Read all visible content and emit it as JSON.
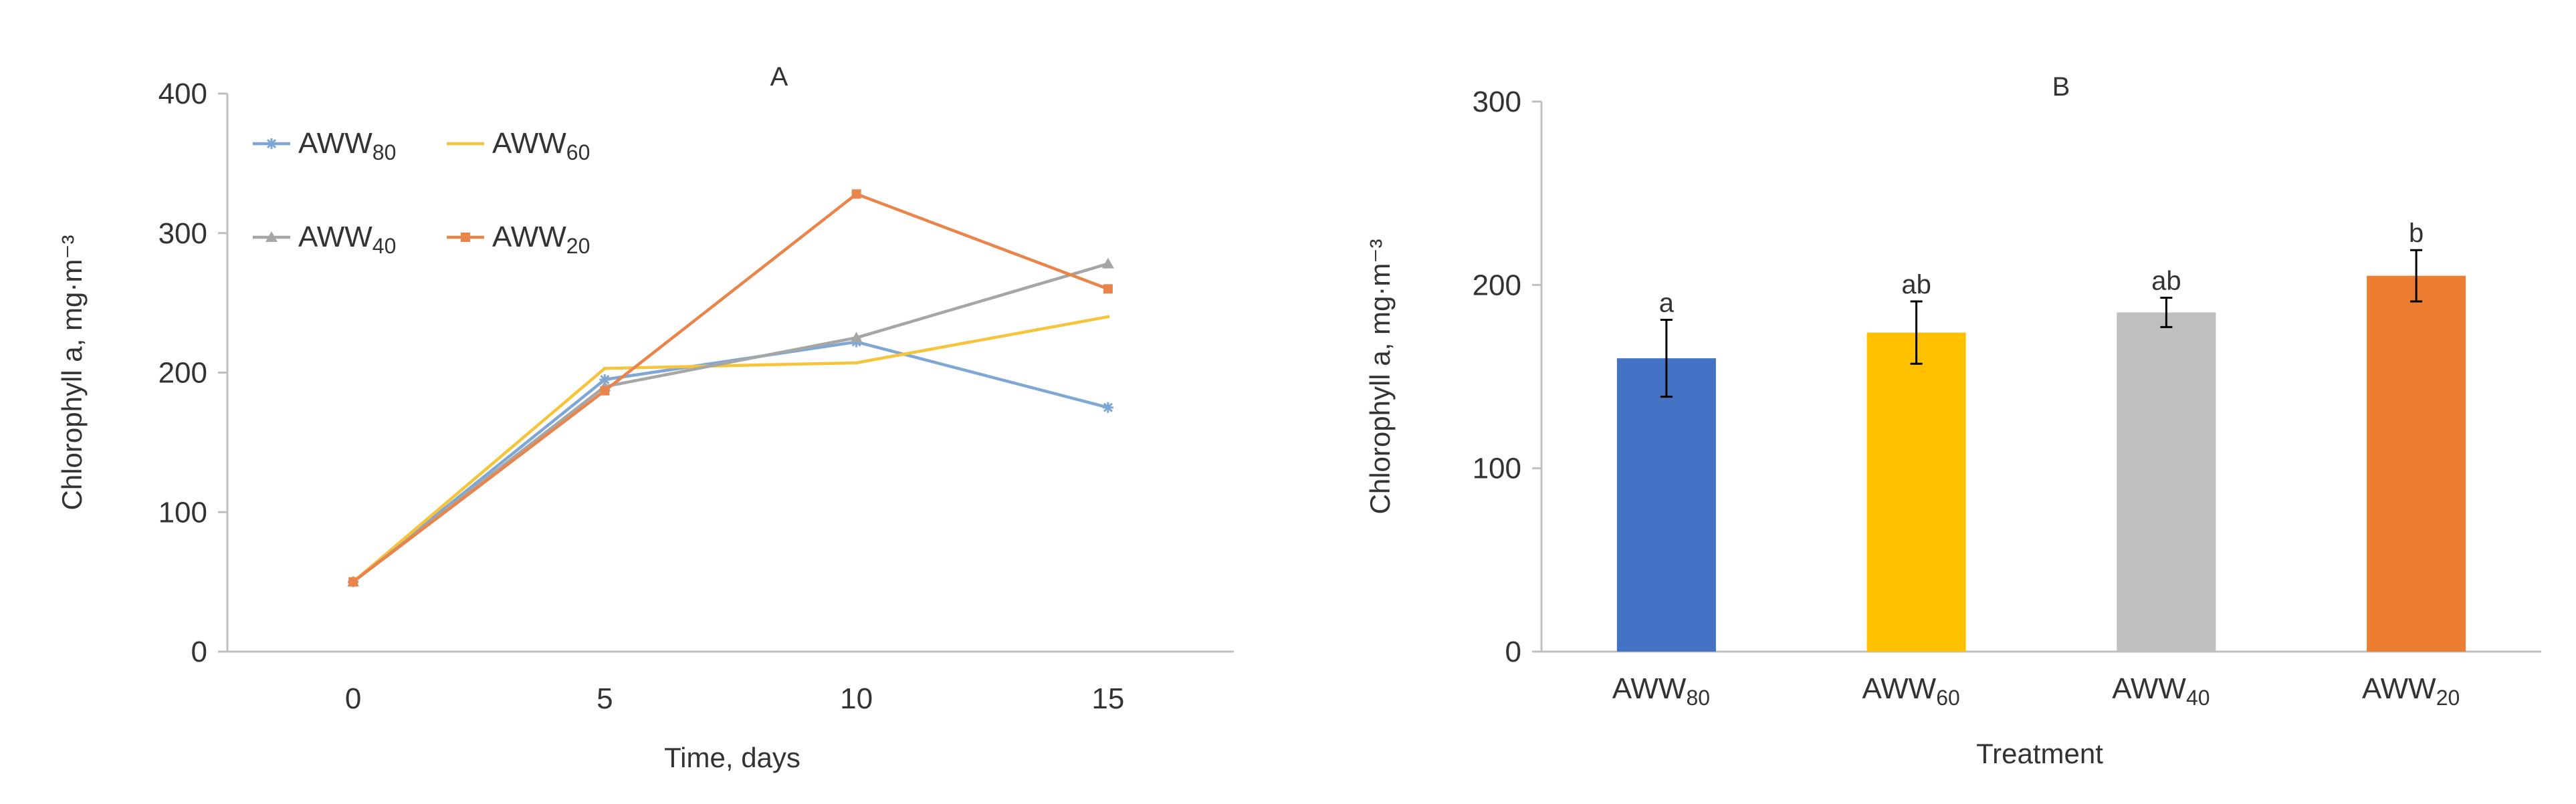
{
  "chart_data": [
    {
      "panel": "A",
      "type": "line",
      "title": "A",
      "xlabel": "Time, days",
      "ylabel": "Chlorophyll a, mg·m⁻³",
      "x": [
        0,
        5,
        10,
        15
      ],
      "xlim": [
        -2.5,
        17.5
      ],
      "ylim": [
        0,
        400
      ],
      "xticks": [
        "0",
        "5",
        "10",
        "15"
      ],
      "yticks": [
        "0",
        "100",
        "200",
        "300",
        "400"
      ],
      "grid": false,
      "legend_position": "top-left",
      "series": [
        {
          "name": "AWW",
          "sub": "80",
          "color": "#7FA7D6",
          "marker": "star",
          "values": [
            50,
            195,
            222,
            175
          ]
        },
        {
          "name": "AWW",
          "sub": "60",
          "color": "#F6C43A",
          "marker": "none",
          "values": [
            50,
            203,
            207,
            240
          ]
        },
        {
          "name": "AWW",
          "sub": "40",
          "color": "#A6A6A6",
          "marker": "triangle",
          "values": [
            50,
            190,
            225,
            278
          ]
        },
        {
          "name": "AWW",
          "sub": "20",
          "color": "#E9844A",
          "marker": "square",
          "values": [
            50,
            187,
            328,
            260
          ]
        }
      ]
    },
    {
      "panel": "B",
      "type": "bar",
      "title": "B",
      "xlabel": "Treatment",
      "ylabel": "Chlorophyll a, mg·m⁻³",
      "ylim": [
        0,
        300
      ],
      "yticks": [
        "0",
        "100",
        "200",
        "300"
      ],
      "grid": false,
      "categories": [
        {
          "name": "AWW",
          "sub": "80"
        },
        {
          "name": "AWW",
          "sub": "60"
        },
        {
          "name": "AWW",
          "sub": "40"
        },
        {
          "name": "AWW",
          "sub": "20"
        }
      ],
      "values": [
        160,
        174,
        185,
        205
      ],
      "errors": [
        21,
        17,
        8,
        14
      ],
      "colors": [
        "#4472C4",
        "#FFC000",
        "#BFBFBF",
        "#ED7D31"
      ],
      "letters": [
        "a",
        "ab",
        "ab",
        "b"
      ]
    }
  ]
}
